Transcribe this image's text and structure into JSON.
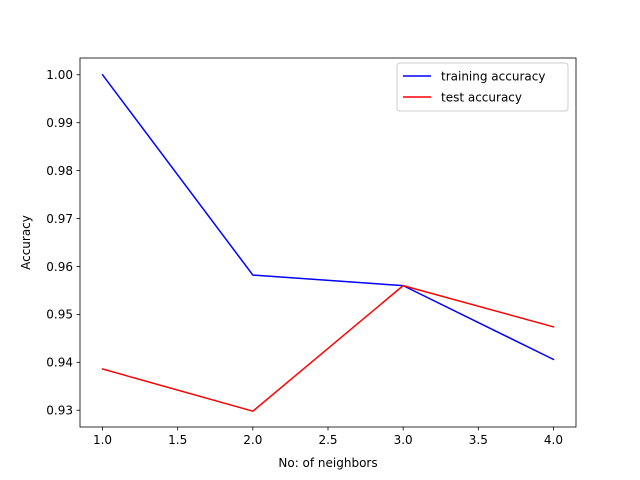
{
  "chart_data": {
    "type": "line",
    "title": "",
    "xlabel": "No: of neighbors",
    "ylabel": "Accuracy",
    "xlim": [
      0.85,
      4.15
    ],
    "ylim": [
      0.9265,
      1.0035
    ],
    "xticks": [
      1.0,
      1.5,
      2.0,
      2.5,
      3.0,
      3.5,
      4.0
    ],
    "xtick_labels": [
      "1.0",
      "1.5",
      "2.0",
      "2.5",
      "3.0",
      "3.5",
      "4.0"
    ],
    "yticks": [
      0.93,
      0.94,
      0.95,
      0.96,
      0.97,
      0.98,
      0.99,
      1.0
    ],
    "ytick_labels": [
      "0.93",
      "0.94",
      "0.95",
      "0.96",
      "0.97",
      "0.98",
      "0.99",
      "1.00"
    ],
    "grid": false,
    "legend_position": "top-right",
    "x": [
      1,
      2,
      3,
      4
    ],
    "series": [
      {
        "name": "training accuracy",
        "color": "#0000ff",
        "values": [
          1.0,
          0.9582,
          0.956,
          0.9406
        ]
      },
      {
        "name": "test accuracy",
        "color": "#ff0000",
        "values": [
          0.9386,
          0.9298,
          0.956,
          0.9474
        ]
      }
    ]
  }
}
